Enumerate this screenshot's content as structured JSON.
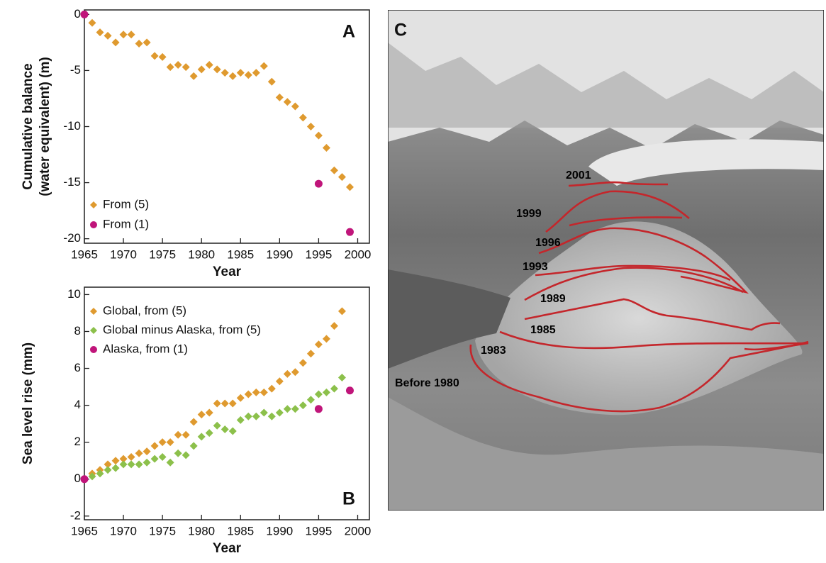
{
  "chart_data": [
    {
      "type": "scatter",
      "panel_label": "A",
      "xlabel": "Year",
      "ylabel": [
        "Cumulative balance",
        "(water equivalent) (m)"
      ],
      "xlim": [
        1965,
        2001.5
      ],
      "ylim": [
        -20.4,
        0.4
      ],
      "xticks": [
        1965,
        1970,
        1975,
        1980,
        1985,
        1990,
        1995,
        2000
      ],
      "yticks": [
        0,
        -5,
        -10,
        -15,
        -20
      ],
      "legend": "lower left",
      "series": [
        {
          "name": "From (5)",
          "color": "#df9a2f",
          "marker": "diamond",
          "x": [
            1966,
            1967,
            1968,
            1969,
            1970,
            1971,
            1972,
            1973,
            1974,
            1975,
            1976,
            1977,
            1978,
            1979,
            1980,
            1981,
            1982,
            1983,
            1984,
            1985,
            1986,
            1987,
            1988,
            1989,
            1990,
            1991,
            1992,
            1993,
            1994,
            1995,
            1996,
            1997,
            1998,
            1999
          ],
          "values": [
            -0.75,
            -1.6,
            -1.9,
            -2.5,
            -1.8,
            -1.8,
            -2.6,
            -2.5,
            -3.7,
            -3.8,
            -4.7,
            -4.5,
            -4.7,
            -5.5,
            -4.9,
            -4.5,
            -4.9,
            -5.2,
            -5.5,
            -5.2,
            -5.4,
            -5.2,
            -4.6,
            -6.0,
            -7.4,
            -7.8,
            -8.2,
            -9.2,
            -10.0,
            -10.8,
            -11.9,
            -13.9,
            -14.5,
            -15.4
          ]
        },
        {
          "name": "From (1)",
          "color": "#c0157a",
          "marker": "circle",
          "x": [
            1965,
            1995,
            1999
          ],
          "values": [
            0,
            -15.1,
            -19.4
          ]
        }
      ]
    },
    {
      "type": "scatter",
      "panel_label": "B",
      "xlabel": "Year",
      "ylabel": [
        "Sea level rise (mm)"
      ],
      "xlim": [
        1965,
        2001.5
      ],
      "ylim": [
        -2.2,
        10.4
      ],
      "xticks": [
        1965,
        1970,
        1975,
        1980,
        1985,
        1990,
        1995,
        2000
      ],
      "yticks": [
        10,
        8,
        6,
        4,
        2,
        0,
        -2
      ],
      "legend": "upper left",
      "series": [
        {
          "name": "Global, from (5)",
          "color": "#df9a2f",
          "marker": "diamond",
          "x": [
            1966,
            1967,
            1968,
            1969,
            1970,
            1971,
            1972,
            1973,
            1974,
            1975,
            1976,
            1977,
            1978,
            1979,
            1980,
            1981,
            1982,
            1983,
            1984,
            1985,
            1986,
            1987,
            1988,
            1989,
            1990,
            1991,
            1992,
            1993,
            1994,
            1995,
            1996,
            1997,
            1998
          ],
          "values": [
            0.3,
            0.5,
            0.8,
            1.0,
            1.1,
            1.2,
            1.4,
            1.5,
            1.8,
            2.0,
            2.0,
            2.4,
            2.4,
            3.1,
            3.5,
            3.6,
            4.1,
            4.1,
            4.1,
            4.4,
            4.6,
            4.7,
            4.7,
            4.9,
            5.3,
            5.7,
            5.8,
            6.3,
            6.8,
            7.3,
            7.6,
            8.3,
            9.1
          ]
        },
        {
          "name": "Global minus Alaska, from (5)",
          "color": "#8cc04b",
          "marker": "diamond",
          "x": [
            1966,
            1967,
            1968,
            1969,
            1970,
            1971,
            1972,
            1973,
            1974,
            1975,
            1976,
            1977,
            1978,
            1979,
            1980,
            1981,
            1982,
            1983,
            1984,
            1985,
            1986,
            1987,
            1988,
            1989,
            1990,
            1991,
            1992,
            1993,
            1994,
            1995,
            1996,
            1997,
            1998
          ],
          "values": [
            0.15,
            0.3,
            0.5,
            0.6,
            0.8,
            0.8,
            0.8,
            0.9,
            1.1,
            1.2,
            0.9,
            1.4,
            1.3,
            1.8,
            2.3,
            2.5,
            2.9,
            2.7,
            2.6,
            3.2,
            3.4,
            3.4,
            3.6,
            3.4,
            3.6,
            3.8,
            3.8,
            4.0,
            4.3,
            4.6,
            4.7,
            4.9,
            5.5
          ]
        },
        {
          "name": "Alaska, from (1)",
          "color": "#c0157a",
          "marker": "circle",
          "x": [
            1965,
            1995,
            1999
          ],
          "values": [
            0,
            3.8,
            4.8
          ]
        }
      ]
    }
  ],
  "photo": {
    "panel_label": "C",
    "annotations": [
      "2001",
      "1999",
      "1996",
      "1993",
      "1989",
      "1985",
      "1983",
      "Before 1980"
    ]
  }
}
